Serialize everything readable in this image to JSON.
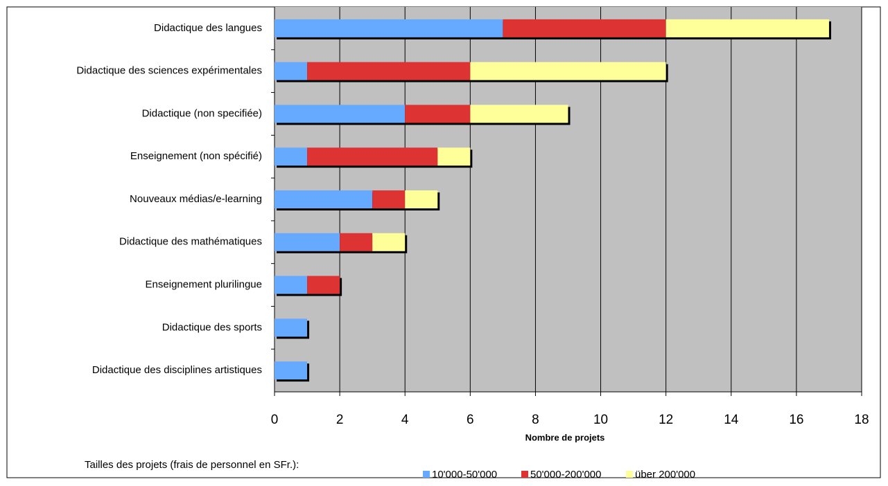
{
  "chart_data": {
    "type": "stacked_barh",
    "categories": [
      "Didactique des langues",
      "Didactique des sciences expérimentales",
      "Didactique (non specifiée)",
      "Enseignement (non spécifié)",
      "Nouveaux médias/e-learning",
      "Didactique des mathématiques",
      "Enseignement plurilingue",
      "Didactique des sports",
      "Didactique des disciplines artistiques"
    ],
    "series": [
      {
        "name": "10'000-50'000",
        "color": "#66aaff",
        "values": [
          7,
          1,
          4,
          1,
          3,
          2,
          1,
          1,
          1
        ]
      },
      {
        "name": "50'000-200'000",
        "color": "#dd3333",
        "values": [
          5,
          5,
          2,
          4,
          1,
          1,
          1,
          0,
          0
        ]
      },
      {
        "name": "über 200'000",
        "color": "#ffff99",
        "values": [
          5,
          6,
          3,
          1,
          1,
          1,
          0,
          0,
          0
        ]
      }
    ],
    "xlabel": "Nombre de projets",
    "legend_title": "Tailles des projets (frais de personnel en SFr.):",
    "xlim": [
      0,
      18
    ],
    "xticks": [
      0,
      2,
      4,
      6,
      8,
      10,
      12,
      14,
      16,
      18
    ],
    "grid": true
  }
}
